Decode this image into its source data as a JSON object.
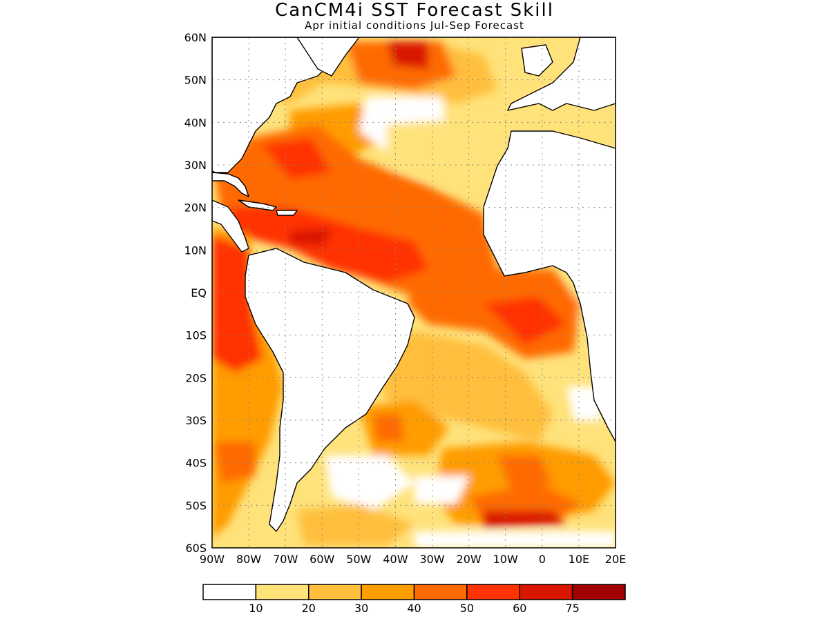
{
  "title": "CanCM4i SST Forecast Skill",
  "subtitle": "Apr initial conditions  Jul-Sep Forecast",
  "map": {
    "lon_range": [
      -90,
      20
    ],
    "lat_range": [
      -60,
      60
    ],
    "lat_labels": [
      "60N",
      "50N",
      "40N",
      "30N",
      "20N",
      "10N",
      "EQ",
      "10S",
      "20S",
      "30S",
      "40S",
      "50S",
      "60S"
    ],
    "lon_labels": [
      "90W",
      "80W",
      "70W",
      "60W",
      "50W",
      "40W",
      "30W",
      "20W",
      "10W",
      "0",
      "10E",
      "20E"
    ],
    "grid": "dotted"
  },
  "colorbar": {
    "labels": [
      "10",
      "20",
      "30",
      "40",
      "50",
      "60",
      "75"
    ],
    "colors": [
      "#ffffff",
      "#ffe27a",
      "#ffbf3c",
      "#ff9c00",
      "#ff6a00",
      "#ff3300",
      "#d91600",
      "#a00000"
    ]
  }
}
